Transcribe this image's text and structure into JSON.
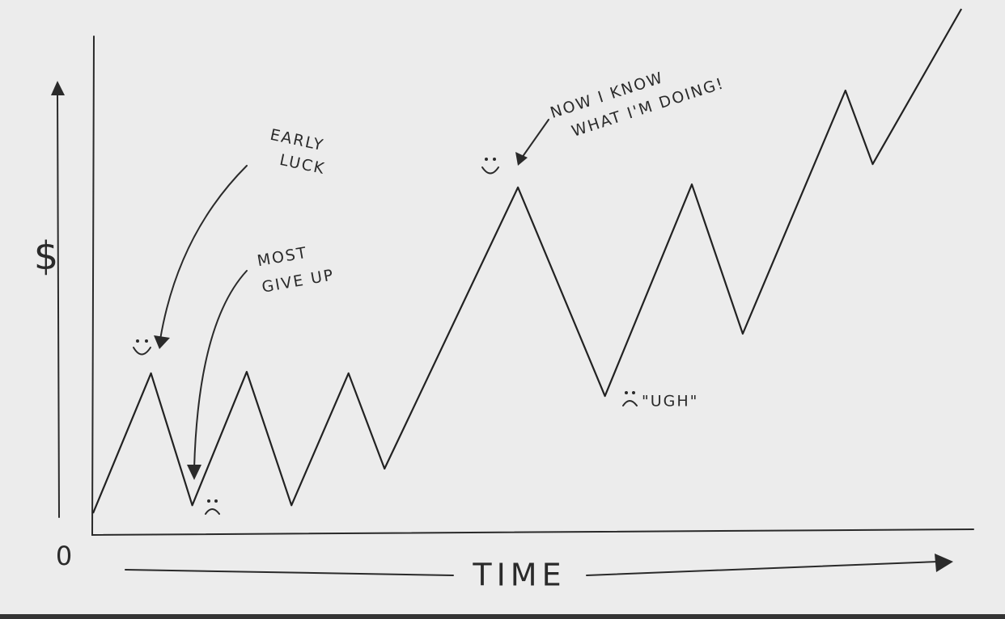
{
  "chart_data": {
    "type": "line",
    "y_label": "$",
    "x_label": "TIME",
    "origin_label": "0",
    "x": [
      0,
      6.6,
      11.3,
      17.5,
      22.6,
      29.1,
      33.2,
      48.4,
      58.3,
      68.2,
      74.0,
      85.7,
      88.8,
      98.9
    ],
    "values": [
      4.4,
      32.7,
      6.0,
      33.0,
      6.0,
      32.7,
      13.4,
      70.3,
      28.1,
      70.9,
      40.7,
      89.9,
      75.0,
      106.4
    ],
    "xlim": [
      0,
      100
    ],
    "ylim": [
      0,
      110
    ],
    "grid": false,
    "color": "#222222",
    "annotations": [
      {
        "lines": [
          "EARLY",
          "LUCK"
        ]
      },
      {
        "lines": [
          "MOST",
          "GIVE UP"
        ]
      },
      {
        "lines": [
          "NOW I KNOW",
          "WHAT I'M DOING!"
        ]
      },
      {
        "lines": [
          "\"UGH\""
        ]
      }
    ]
  }
}
